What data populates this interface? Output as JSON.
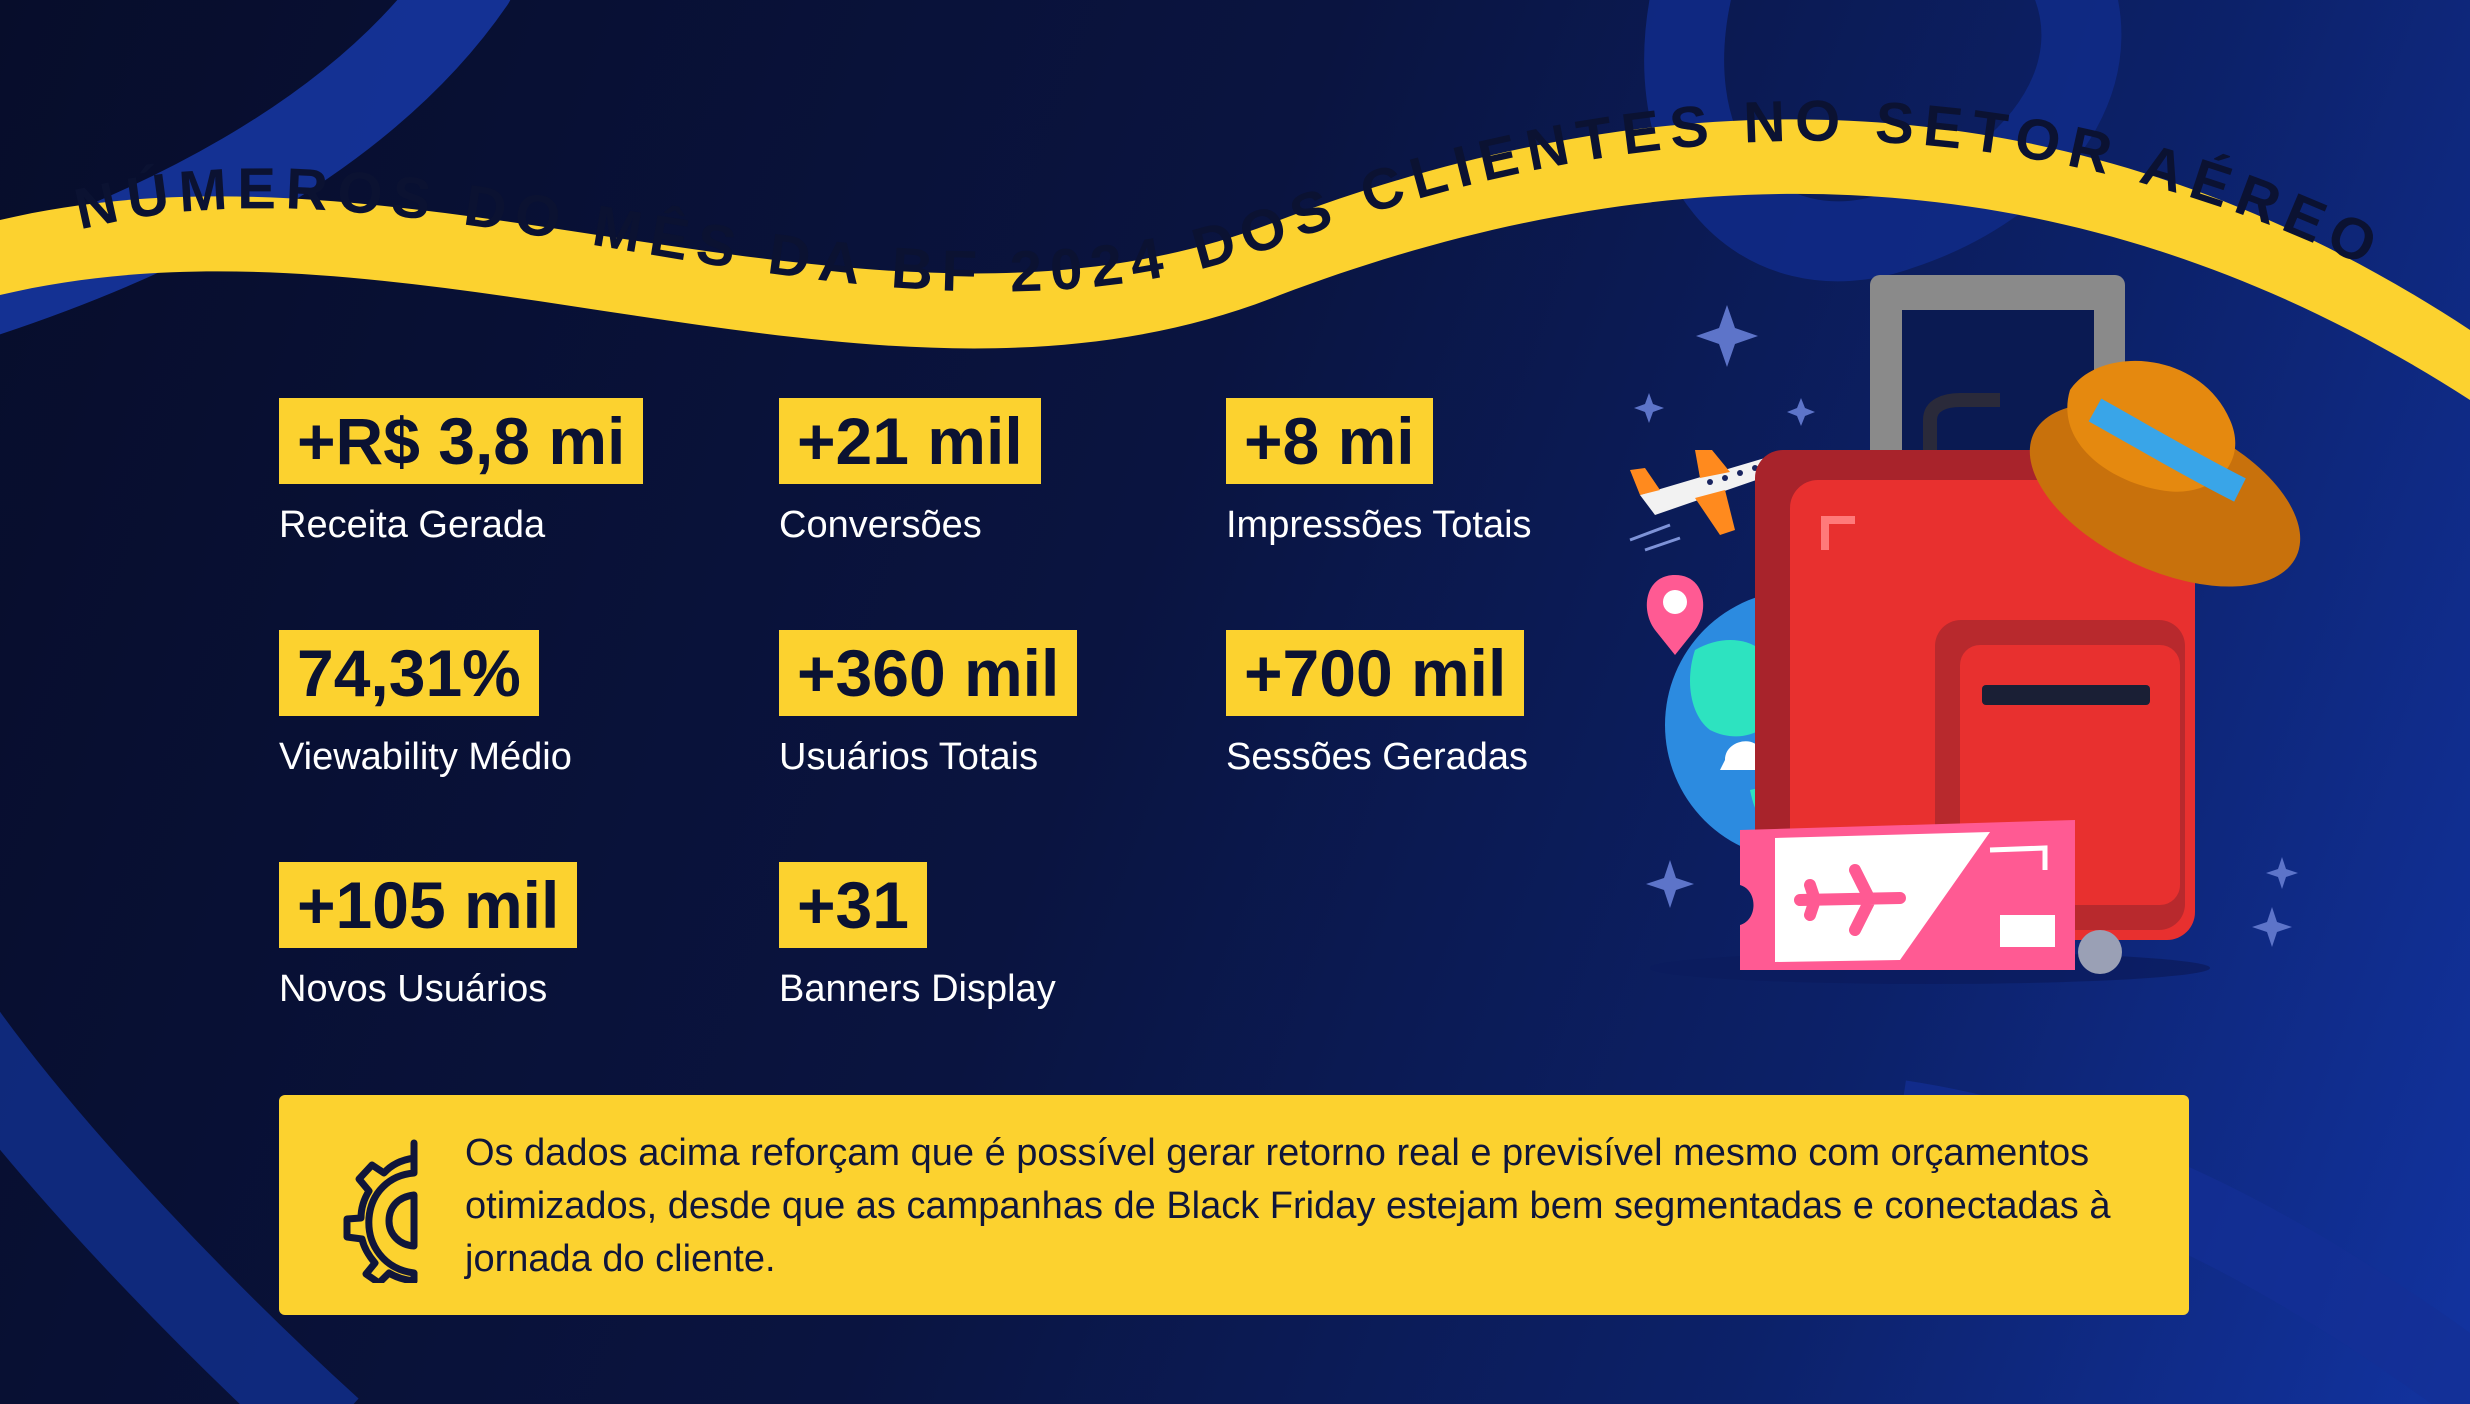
{
  "banner": {
    "title": "NÚMEROS DO MÊS DA BF 2024 DOS CLIENTES NO SETOR AÉREO"
  },
  "stats": [
    {
      "value": "+R$ 3,8 mi",
      "label": "Receita Gerada"
    },
    {
      "value": "+21 mil",
      "label": "Conversões"
    },
    {
      "value": "+8 mi",
      "label": "Impressões Totais"
    },
    {
      "value": "74,31%",
      "label": "Viewability Médio"
    },
    {
      "value": "+360 mil",
      "label": "Usuários Totais"
    },
    {
      "value": "+700 mil",
      "label": "Sessões Geradas"
    },
    {
      "value": "+105 mil",
      "label": "Novos Usuários"
    },
    {
      "value": "+31",
      "label": "Banners Display"
    }
  ],
  "note": {
    "icon": "gear-icon",
    "text": "Os dados acima reforçam que é possível gerar retorno real e previsível mesmo com orçamentos otimizados, desde que as campanhas de Black Friday estejam bem segmentadas e conectadas à jornada do cliente."
  },
  "illustration": {
    "icons": [
      "airplane-icon",
      "globe-icon",
      "location-pin-icon",
      "suitcase-icon",
      "hat-icon",
      "ticket-icon",
      "sparkle-icon"
    ]
  },
  "colors": {
    "background": "#0a1440",
    "accent_yellow": "#fcd22f",
    "text_dark": "#0b1232",
    "text_light": "#ffffff"
  }
}
